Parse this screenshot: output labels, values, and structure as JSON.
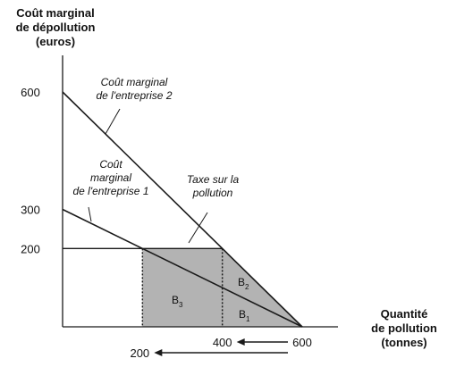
{
  "chart_data": {
    "type": "line",
    "y_axis_title": [
      "Coût marginal",
      "de dépollution",
      "(euros)"
    ],
    "x_axis_title": [
      "Quantité",
      "de pollution",
      "(tonnes)"
    ],
    "xlim": [
      0,
      600
    ],
    "ylim": [
      0,
      600
    ],
    "y_ticks": [
      600,
      300,
      200
    ],
    "x_ticks_bottom": [
      "400",
      "600"
    ],
    "x_tick_lower": "200",
    "series": [
      {
        "label_lines": [
          "Coût marginal",
          "de l'entreprise 2"
        ],
        "points": [
          [
            0,
            600
          ],
          [
            600,
            0
          ]
        ]
      },
      {
        "label_lines": [
          "Coût",
          "marginal",
          "de l'entreprise 1"
        ],
        "points": [
          [
            0,
            300
          ],
          [
            600,
            0
          ]
        ]
      }
    ],
    "tax": {
      "label_lines": [
        "Taxe sur la",
        "pollution"
      ],
      "value": 200
    },
    "regions": [
      {
        "label": "B",
        "sub": "3"
      },
      {
        "label": "B",
        "sub": "2"
      },
      {
        "label": "B",
        "sub": "1"
      }
    ],
    "equilibria": [
      200,
      400
    ],
    "colors": {
      "shade": "#b3b3b3",
      "line": "#1a1a1a"
    }
  }
}
